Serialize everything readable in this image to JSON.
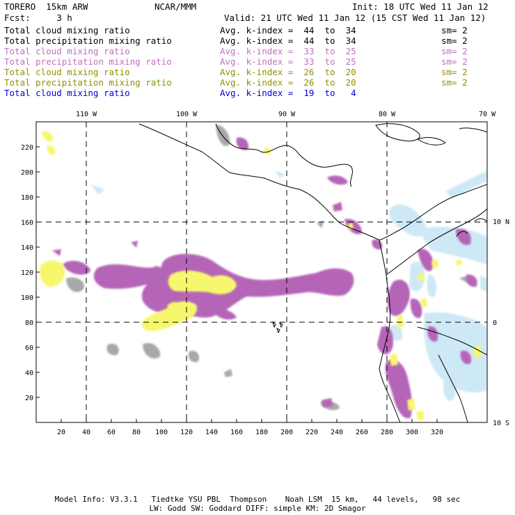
{
  "header": {
    "model": "TORERO  15km ARW",
    "org": "NCAR/MMM",
    "init": "Init: 18 UTC Wed 11 Jan 12",
    "fcst": "Fcst:     3 h",
    "valid": "Valid: 21 UTC Wed 11 Jan 12 (15 CST Wed 11 Jan 12)"
  },
  "legend": [
    {
      "var": "Total cloud mixing ratio",
      "avg": "Avg. k-index =  44  to  34",
      "sm": "sm= 2",
      "color": "#000000"
    },
    {
      "var": "Total precipitation mixing ratio",
      "avg": "Avg. k-index =  44  to  34",
      "sm": "sm= 2",
      "color": "#000000"
    },
    {
      "var": "Total cloud mixing ratio",
      "avg": "Avg. k-index =  33  to  25",
      "sm": "sm= 2",
      "color": "#c070c0"
    },
    {
      "var": "Total precipitation mixing ratio",
      "avg": "Avg. k-index =  33  to  25",
      "sm": "sm= 2",
      "color": "#c070c0"
    },
    {
      "var": "Total cloud mixing ratio",
      "avg": "Avg. k-index =  26  to  20",
      "sm": "sm= 2",
      "color": "#909000"
    },
    {
      "var": "Total precipitation mixing ratio",
      "avg": "Avg. k-index =  26  to  20",
      "sm": "sm= 2",
      "color": "#909000"
    },
    {
      "var": "Total cloud mixing ratio",
      "avg": "Avg. k-index =  19  to   4",
      "sm": "",
      "color": "#0000d0"
    }
  ],
  "map": {
    "lon_labels": [
      "110 W",
      "100 W",
      "90 W",
      "80 W",
      "70 W"
    ],
    "lat_labels": [
      "10 N",
      "0",
      "10 S"
    ],
    "y_ticks": [
      "220",
      "200",
      "180",
      "160",
      "140",
      "120",
      "100",
      "80",
      "60",
      "40",
      "20"
    ],
    "x_ticks": [
      "20",
      "40",
      "60",
      "80",
      "100",
      "120",
      "140",
      "160",
      "180",
      "200",
      "220",
      "240",
      "260",
      "280",
      "300",
      "320"
    ]
  },
  "colors": {
    "grey": "#a8a8a8",
    "purple": "#b565b8",
    "yellow": "#f7f76e",
    "lightblue": "#cde9f5"
  },
  "footer": {
    "line1": "Model Info: V3.3.1   Tiedtke YSU PBL  Thompson    Noah LSM  15 km,   44 levels,   98 sec",
    "line2": "LW: Godd SW: Goddard DIFF: simple KM: 2D Smagor"
  }
}
